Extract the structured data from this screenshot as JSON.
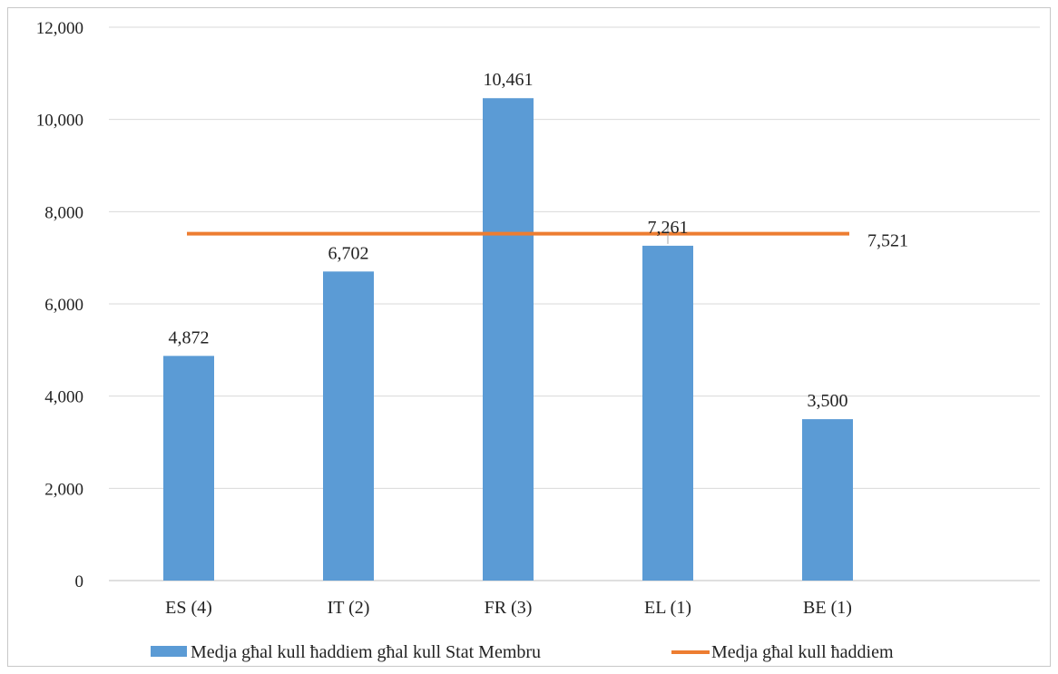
{
  "chart_data": {
    "type": "bar",
    "categories": [
      "ES (4)",
      "IT (2)",
      "FR (3)",
      "EL (1)",
      "BE (1)"
    ],
    "series": [
      {
        "name": "Medja għal kull ħaddiem għal kull Stat Membru",
        "type": "bar",
        "values": [
          4872,
          6702,
          10461,
          7261,
          3500
        ],
        "value_labels": [
          "4,872",
          "6,702",
          "10,461",
          "7,261",
          "3,500"
        ],
        "color": "#5b9bd5"
      },
      {
        "name": "Medja għal kull ħaddiem",
        "type": "line",
        "value": 7521,
        "value_label": "7,521",
        "color": "#ed7d31"
      }
    ],
    "ylim": [
      0,
      12000
    ],
    "yticks": [
      0,
      2000,
      4000,
      6000,
      8000,
      10000,
      12000
    ],
    "ytick_labels": [
      "0",
      "2,000",
      "4,000",
      "6,000",
      "8,000",
      "10,000",
      "12,000"
    ],
    "grid": true,
    "legend_position": "bottom",
    "title": "",
    "xlabel": "",
    "ylabel": ""
  }
}
